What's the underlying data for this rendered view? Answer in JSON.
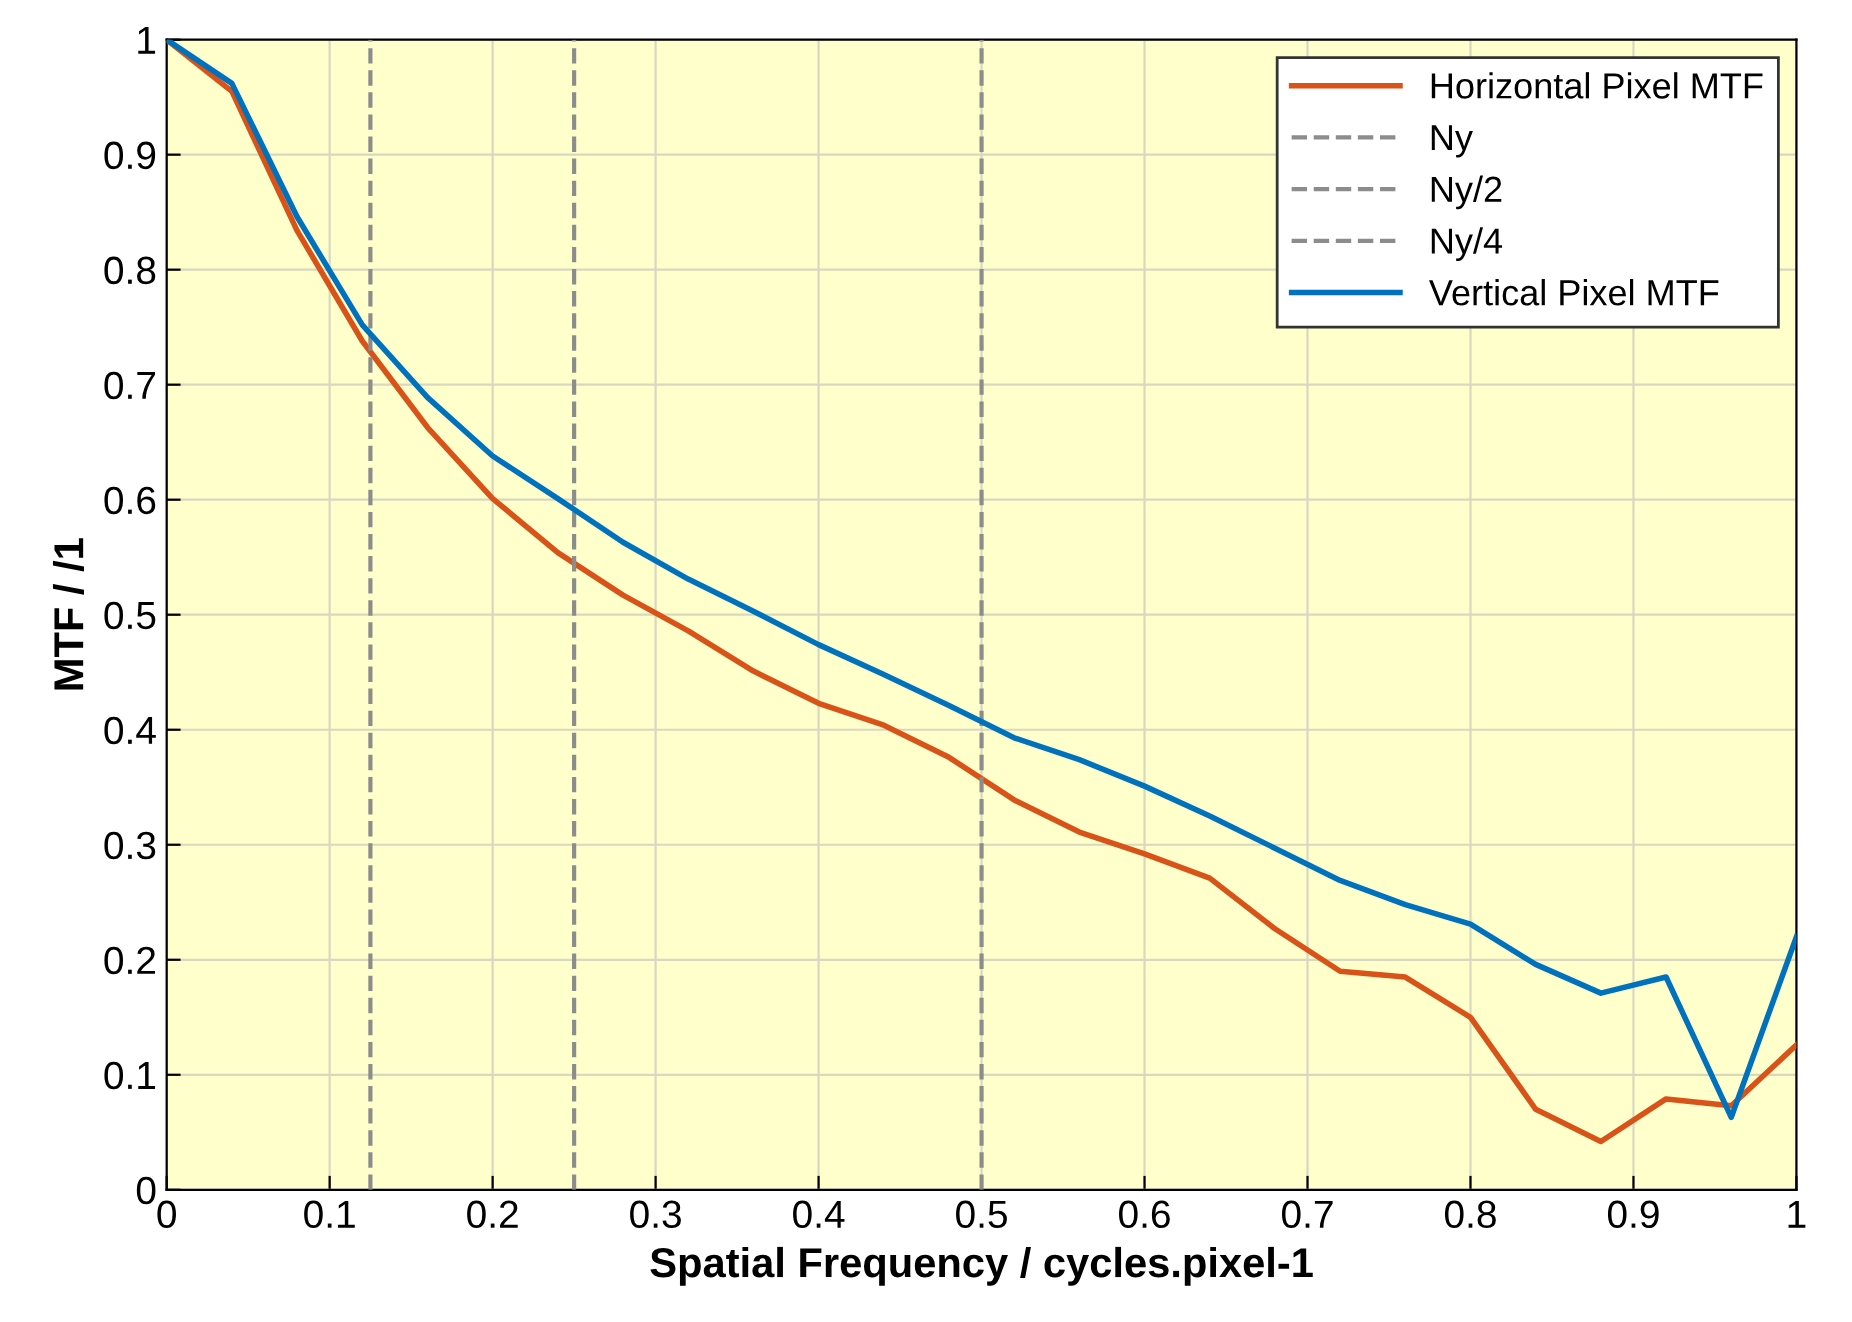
{
  "chart_data": {
    "type": "line",
    "xlabel": "Spatial Frequency / cycles.pixel-1",
    "ylabel": "MTF / /1",
    "x": [
      0,
      0.04,
      0.08,
      0.12,
      0.16,
      0.2,
      0.24,
      0.28,
      0.32,
      0.36,
      0.4,
      0.44,
      0.48,
      0.52,
      0.56,
      0.6,
      0.64,
      0.68,
      0.72,
      0.76,
      0.8,
      0.84,
      0.88,
      0.92,
      0.96,
      1.0
    ],
    "series": [
      {
        "name": "Horizontal Pixel MTF",
        "color": "#d95319",
        "values": [
          1,
          0.955,
          0.834,
          0.738,
          0.663,
          0.601,
          0.554,
          0.517,
          0.486,
          0.451,
          0.423,
          0.404,
          0.376,
          0.339,
          0.311,
          0.292,
          0.271,
          0.227,
          0.19,
          0.185,
          0.15,
          0.07,
          0.042,
          0.079,
          0.073,
          0.126
        ]
      },
      {
        "name": "Ny",
        "color": "#8c8c8c",
        "line_style": "dashed",
        "x": [
          0.5,
          0.5
        ],
        "values": [
          0,
          1
        ]
      },
      {
        "name": "Ny/2",
        "color": "#8c8c8c",
        "line_style": "dashed",
        "x": [
          0.25,
          0.25
        ],
        "values": [
          0,
          1
        ]
      },
      {
        "name": "Ny/4",
        "color": "#8c8c8c",
        "line_style": "dashed",
        "x": [
          0.125,
          0.125
        ],
        "values": [
          0,
          1
        ]
      },
      {
        "name": "Vertical Pixel MTF",
        "color": "#0072bd",
        "values": [
          1,
          0.962,
          0.846,
          0.752,
          0.689,
          0.638,
          0.601,
          0.563,
          0.531,
          0.503,
          0.474,
          0.448,
          0.421,
          0.393,
          0.374,
          0.351,
          0.325,
          0.297,
          0.269,
          0.248,
          0.231,
          0.196,
          0.171,
          0.185,
          0.063,
          0.22
        ]
      }
    ],
    "xlim": [
      0,
      1
    ],
    "ylim": [
      0,
      1
    ],
    "xticks": [
      0,
      0.1,
      0.2,
      0.3,
      0.4,
      0.5,
      0.6,
      0.7,
      0.8,
      0.9,
      1
    ],
    "yticks": [
      0,
      0.1,
      0.2,
      0.3,
      0.4,
      0.5,
      0.6,
      0.7,
      0.8,
      0.9,
      1
    ],
    "grid": true,
    "legend": "top right",
    "marker": "none",
    "line_style": "solid"
  }
}
